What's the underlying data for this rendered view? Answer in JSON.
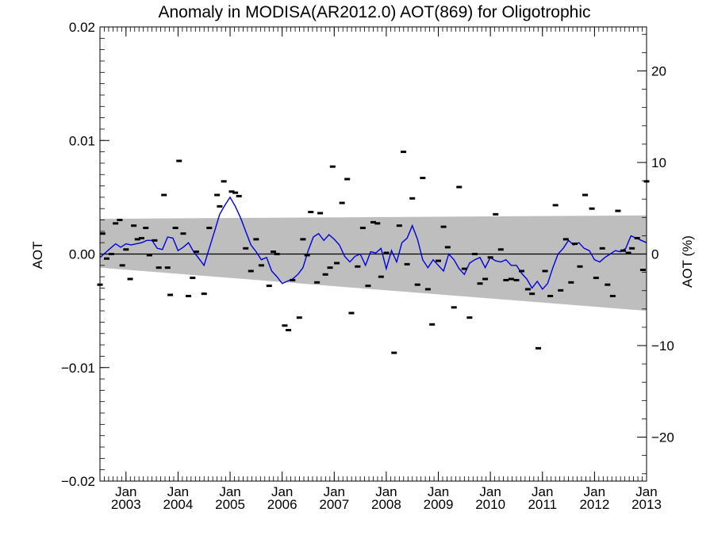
{
  "chart_data": {
    "type": "scatter",
    "title": "Anomaly in MODISA(AR2012.0) AOT(869) for Oligotrophic",
    "ylabel": "AOT",
    "y2label": "AOT (%)",
    "xlabel": "",
    "xlim": [
      2002.5,
      2013.0
    ],
    "ylim": [
      -0.02,
      0.02
    ],
    "y2lim": [
      -24.8,
      24.8
    ],
    "y_ticks": [
      "−0.02",
      "−0.01",
      "0.00",
      "0.01",
      "0.02"
    ],
    "y2_ticks": [
      "−20",
      "−10",
      "0",
      "10",
      "20"
    ],
    "x_ticks": [
      {
        "month": "Jan",
        "year": "2003",
        "x": 2003
      },
      {
        "month": "Jan",
        "year": "2004",
        "x": 2004
      },
      {
        "month": "Jan",
        "year": "2005",
        "x": 2005
      },
      {
        "month": "Jan",
        "year": "2006",
        "x": 2006
      },
      {
        "month": "Jan",
        "year": "2007",
        "x": 2007
      },
      {
        "month": "Jan",
        "year": "2008",
        "x": 2008
      },
      {
        "month": "Jan",
        "year": "2009",
        "x": 2009
      },
      {
        "month": "Jan",
        "year": "2010",
        "x": 2010
      },
      {
        "month": "Jan",
        "year": "2011",
        "x": 2011
      },
      {
        "month": "Jan",
        "year": "2012",
        "x": 2012
      },
      {
        "month": "Jan",
        "year": "2013",
        "x": 2013
      }
    ],
    "band": {
      "upper": [
        [
          2002.5,
          0.0031
        ],
        [
          2013.0,
          0.0034
        ]
      ],
      "lower": [
        [
          2002.5,
          -0.0012
        ],
        [
          2013.0,
          -0.005
        ]
      ],
      "color": "#bebebe"
    },
    "zero_line": 0,
    "colors": {
      "points": "#000000",
      "line": "#0000dd",
      "band": "#bebebe"
    },
    "series": [
      {
        "kind": "points",
        "values": [
          [
            2002.5,
            -0.0027
          ],
          [
            2002.55,
            0.0018
          ],
          [
            2002.63,
            -0.0004
          ],
          [
            2002.72,
            0.0
          ],
          [
            2002.8,
            0.0027
          ],
          [
            2002.88,
            0.003
          ],
          [
            2002.93,
            -0.001
          ],
          [
            2003.0,
            0.0004
          ],
          [
            2003.08,
            -0.0022
          ],
          [
            2003.15,
            0.0025
          ],
          [
            2003.22,
            0.0013
          ],
          [
            2003.3,
            0.0014
          ],
          [
            2003.38,
            0.0023
          ],
          [
            2003.45,
            -0.0001
          ],
          [
            2003.55,
            0.0012
          ],
          [
            2003.63,
            -0.0012
          ],
          [
            2003.73,
            0.0052
          ],
          [
            2003.8,
            -0.0012
          ],
          [
            2003.85,
            -0.0036
          ],
          [
            2003.95,
            0.0023
          ],
          [
            2004.02,
            0.0082
          ],
          [
            2004.1,
            0.0018
          ],
          [
            2004.2,
            -0.0037
          ],
          [
            2004.28,
            -0.0021
          ],
          [
            2004.35,
            0.0002
          ],
          [
            2004.5,
            -0.0035
          ],
          [
            2004.6,
            0.0023
          ],
          [
            2004.75,
            0.0052
          ],
          [
            2004.8,
            0.0042
          ],
          [
            2004.88,
            0.0064
          ],
          [
            2005.03,
            0.0055
          ],
          [
            2005.1,
            0.0054
          ],
          [
            2005.17,
            0.0051
          ],
          [
            2005.3,
            0.0005
          ],
          [
            2005.4,
            -0.0015
          ],
          [
            2005.5,
            0.0013
          ],
          [
            2005.6,
            -0.001
          ],
          [
            2005.75,
            -0.0028
          ],
          [
            2005.83,
            0.0002
          ],
          [
            2005.9,
            0.0
          ],
          [
            2006.05,
            -0.0063
          ],
          [
            2006.12,
            -0.0067
          ],
          [
            2006.2,
            -0.0023
          ],
          [
            2006.33,
            -0.0056
          ],
          [
            2006.4,
            0.0013
          ],
          [
            2006.48,
            -0.0001
          ],
          [
            2006.55,
            0.0037
          ],
          [
            2006.67,
            -0.0025
          ],
          [
            2006.73,
            0.0036
          ],
          [
            2006.83,
            -0.0018
          ],
          [
            2006.92,
            -0.0012
          ],
          [
            2006.97,
            0.0077
          ],
          [
            2007.05,
            -0.0008
          ],
          [
            2007.15,
            0.0045
          ],
          [
            2007.25,
            0.0066
          ],
          [
            2007.33,
            -0.0052
          ],
          [
            2007.45,
            -0.0011
          ],
          [
            2007.55,
            0.0023
          ],
          [
            2007.65,
            -0.0028
          ],
          [
            2007.75,
            0.0028
          ],
          [
            2007.83,
            0.0027
          ],
          [
            2007.9,
            -0.002
          ],
          [
            2008.0,
            0.0001
          ],
          [
            2008.15,
            -0.0087
          ],
          [
            2008.25,
            0.0025
          ],
          [
            2008.33,
            0.009
          ],
          [
            2008.4,
            -0.0009
          ],
          [
            2008.5,
            0.0049
          ],
          [
            2008.6,
            -0.0027
          ],
          [
            2008.7,
            0.0067
          ],
          [
            2008.8,
            -0.0031
          ],
          [
            2008.88,
            -0.0062
          ],
          [
            2009.0,
            -0.0006
          ],
          [
            2009.1,
            0.0024
          ],
          [
            2009.18,
            0.0006
          ],
          [
            2009.3,
            -0.0047
          ],
          [
            2009.4,
            0.0059
          ],
          [
            2009.5,
            -0.0013
          ],
          [
            2009.6,
            -0.0056
          ],
          [
            2009.7,
            0.0
          ],
          [
            2009.8,
            -0.0026
          ],
          [
            2009.9,
            -0.0022
          ],
          [
            2010.0,
            -0.0003
          ],
          [
            2010.1,
            0.0035
          ],
          [
            2010.2,
            0.0004
          ],
          [
            2010.3,
            -0.0023
          ],
          [
            2010.4,
            -0.0022
          ],
          [
            2010.5,
            -0.0023
          ],
          [
            2010.6,
            -0.0015
          ],
          [
            2010.72,
            -0.0031
          ],
          [
            2010.8,
            -0.0035
          ],
          [
            2010.92,
            -0.0083
          ],
          [
            2011.05,
            -0.0015
          ],
          [
            2011.15,
            -0.0037
          ],
          [
            2011.25,
            0.0043
          ],
          [
            2011.35,
            -0.0032
          ],
          [
            2011.45,
            0.0013
          ],
          [
            2011.55,
            -0.0025
          ],
          [
            2011.62,
            0.0009
          ],
          [
            2011.72,
            -0.0011
          ],
          [
            2011.82,
            0.0052
          ],
          [
            2011.95,
            0.004
          ],
          [
            2012.03,
            -0.0021
          ],
          [
            2012.15,
            0.0005
          ],
          [
            2012.25,
            -0.0027
          ],
          [
            2012.35,
            -0.0037
          ],
          [
            2012.45,
            0.0038
          ],
          [
            2012.55,
            0.0003
          ],
          [
            2012.65,
            0.0001
          ],
          [
            2012.72,
            0.0005
          ],
          [
            2012.82,
            0.0014
          ],
          [
            2012.93,
            -0.0014
          ],
          [
            2013.0,
            0.0064
          ]
        ]
      },
      {
        "kind": "line",
        "values": [
          [
            2002.5,
            -0.0003
          ],
          [
            2002.6,
            0.0001
          ],
          [
            2002.7,
            0.0005
          ],
          [
            2002.8,
            0.0009
          ],
          [
            2002.9,
            0.0006
          ],
          [
            2003.0,
            0.0009
          ],
          [
            2003.1,
            0.0008
          ],
          [
            2003.2,
            0.0009
          ],
          [
            2003.3,
            0.001
          ],
          [
            2003.4,
            0.0012
          ],
          [
            2003.5,
            0.0012
          ],
          [
            2003.6,
            0.0005
          ],
          [
            2003.7,
            0.0004
          ],
          [
            2003.8,
            0.0015
          ],
          [
            2003.9,
            0.0014
          ],
          [
            2004.0,
            0.0003
          ],
          [
            2004.1,
            0.0006
          ],
          [
            2004.2,
            0.001
          ],
          [
            2004.3,
            0.0002
          ],
          [
            2004.4,
            -0.0004
          ],
          [
            2004.5,
            -0.001
          ],
          [
            2004.6,
            0.0005
          ],
          [
            2004.7,
            0.002
          ],
          [
            2004.8,
            0.0035
          ],
          [
            2004.9,
            0.0043
          ],
          [
            2005.0,
            0.005
          ],
          [
            2005.1,
            0.0042
          ],
          [
            2005.2,
            0.0032
          ],
          [
            2005.3,
            0.002
          ],
          [
            2005.4,
            0.0008
          ],
          [
            2005.5,
            0.0002
          ],
          [
            2005.6,
            -0.0005
          ],
          [
            2005.7,
            -0.0003
          ],
          [
            2005.8,
            -0.0015
          ],
          [
            2005.9,
            -0.002
          ],
          [
            2006.0,
            -0.0026
          ],
          [
            2006.1,
            -0.0024
          ],
          [
            2006.2,
            -0.0022
          ],
          [
            2006.3,
            -0.0018
          ],
          [
            2006.4,
            -0.0012
          ],
          [
            2006.5,
            0.0003
          ],
          [
            2006.6,
            0.0015
          ],
          [
            2006.7,
            0.0018
          ],
          [
            2006.8,
            0.0012
          ],
          [
            2006.9,
            0.0017
          ],
          [
            2007.0,
            0.0013
          ],
          [
            2007.1,
            0.0008
          ],
          [
            2007.2,
            -0.0002
          ],
          [
            2007.3,
            -0.0007
          ],
          [
            2007.4,
            -0.0002
          ],
          [
            2007.5,
            0.0
          ],
          [
            2007.6,
            -0.001
          ],
          [
            2007.7,
            0.0002
          ],
          [
            2007.8,
            0.0001
          ],
          [
            2007.9,
            0.0005
          ],
          [
            2008.0,
            -0.0013
          ],
          [
            2008.1,
            0.0003
          ],
          [
            2008.2,
            -0.0007
          ],
          [
            2008.3,
            0.001
          ],
          [
            2008.4,
            0.0014
          ],
          [
            2008.5,
            0.0025
          ],
          [
            2008.6,
            0.0013
          ],
          [
            2008.7,
            -0.0005
          ],
          [
            2008.8,
            -0.0012
          ],
          [
            2008.9,
            -0.0005
          ],
          [
            2009.0,
            -0.001
          ],
          [
            2009.1,
            -0.0015
          ],
          [
            2009.2,
            0.0
          ],
          [
            2009.3,
            -0.0005
          ],
          [
            2009.4,
            -0.0013
          ],
          [
            2009.5,
            -0.0018
          ],
          [
            2009.6,
            -0.0008
          ],
          [
            2009.7,
            -0.0005
          ],
          [
            2009.8,
            -0.0003
          ],
          [
            2009.9,
            -0.0012
          ],
          [
            2010.0,
            -0.0003
          ],
          [
            2010.1,
            -0.0006
          ],
          [
            2010.2,
            -0.0007
          ],
          [
            2010.3,
            -0.0005
          ],
          [
            2010.4,
            -0.001
          ],
          [
            2010.5,
            -0.001
          ],
          [
            2010.6,
            -0.0017
          ],
          [
            2010.7,
            -0.0022
          ],
          [
            2010.8,
            -0.003
          ],
          [
            2010.9,
            -0.0024
          ],
          [
            2011.0,
            -0.0031
          ],
          [
            2011.1,
            -0.0026
          ],
          [
            2011.2,
            -0.0012
          ],
          [
            2011.3,
            0.0
          ],
          [
            2011.4,
            0.0005
          ],
          [
            2011.5,
            0.0012
          ],
          [
            2011.6,
            0.0008
          ],
          [
            2011.7,
            0.001
          ],
          [
            2011.8,
            0.0005
          ],
          [
            2011.9,
            0.0003
          ],
          [
            2012.0,
            -0.0005
          ],
          [
            2012.1,
            -0.0007
          ],
          [
            2012.2,
            -0.0003
          ],
          [
            2012.3,
            0.0
          ],
          [
            2012.4,
            0.0003
          ],
          [
            2012.5,
            0.0002
          ],
          [
            2012.6,
            0.0005
          ],
          [
            2012.7,
            0.0016
          ],
          [
            2012.8,
            0.0014
          ],
          [
            2012.9,
            0.0012
          ],
          [
            2013.0,
            0.001
          ]
        ]
      }
    ]
  }
}
